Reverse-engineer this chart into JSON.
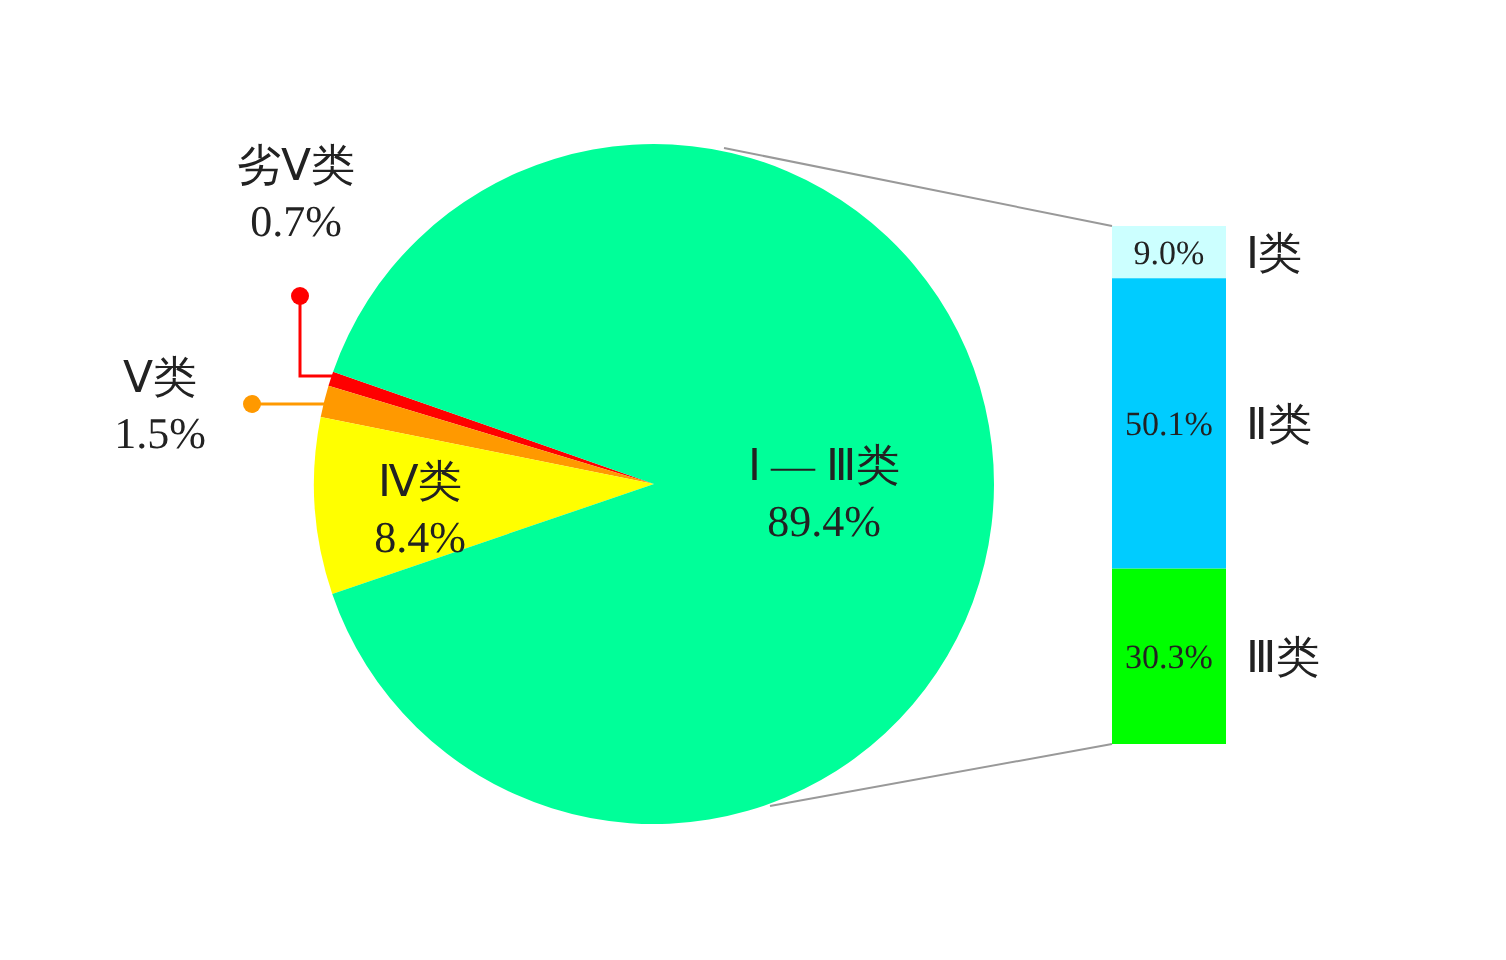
{
  "chart_data": [
    {
      "type": "pie",
      "categories": [
        "劣Ⅴ类",
        "Ⅴ类",
        "Ⅳ类",
        "Ⅰ — Ⅲ类"
      ],
      "values": [
        0.7,
        1.5,
        8.4,
        89.4
      ],
      "colors": [
        "#ff0000",
        "#ff9900",
        "#ffff00",
        "#00ff99"
      ],
      "value_labels": [
        "0.7%",
        "1.5%",
        "8.4%",
        "89.4%"
      ]
    },
    {
      "type": "bar",
      "stacked": true,
      "categories": [
        null
      ],
      "series": [
        {
          "name": "Ⅲ类",
          "color": "#00ff00",
          "values": [
            30.3
          ],
          "value_labels": [
            "30.3%"
          ]
        },
        {
          "name": "Ⅱ类",
          "color": "#00ccff",
          "values": [
            50.1
          ],
          "value_labels": [
            "50.1%"
          ]
        },
        {
          "name": "Ⅰ类",
          "color": "#ccffff",
          "values": [
            9.0
          ],
          "value_labels": [
            "9.0%"
          ]
        }
      ]
    }
  ]
}
